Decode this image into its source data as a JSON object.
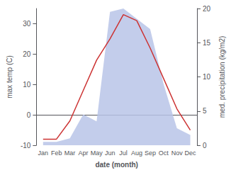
{
  "chart_data": {
    "type": "line",
    "xlabel": "date (month)",
    "ylabel": "max temp (C)",
    "y2label": "med. precipitation (kg/m2)",
    "categories": [
      "Jan",
      "Feb",
      "Mar",
      "Apr",
      "May",
      "Jun",
      "Jul",
      "Aug",
      "Sep",
      "Oct",
      "Nov",
      "Dec"
    ],
    "series": [
      {
        "type": "area",
        "axis": "y2",
        "color": "#b8c4e8",
        "values": [
          0.5,
          0.5,
          1.0,
          4.5,
          3.5,
          19.5,
          20.0,
          18.5,
          17.0,
          9.0,
          2.5,
          1.5
        ]
      },
      {
        "type": "line",
        "color": "#cc3333",
        "values": [
          -8,
          -8,
          -2,
          8,
          18,
          25,
          33,
          31,
          22,
          12,
          2,
          -5
        ]
      }
    ],
    "ylim": [
      -10,
      35
    ],
    "yticks": [
      -10,
      0,
      10,
      20,
      30
    ],
    "y2lim": [
      0,
      20
    ],
    "y2ticks": [
      0,
      5,
      10,
      15,
      20
    ],
    "grid": false
  }
}
